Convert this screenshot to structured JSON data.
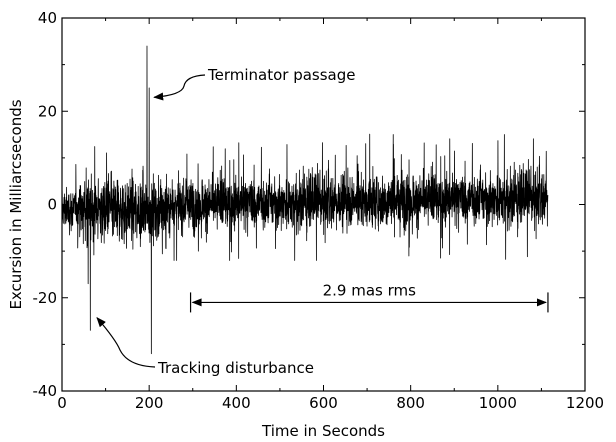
{
  "chart_data": {
    "type": "line",
    "title": "",
    "xlabel": "Time in Seconds",
    "ylabel": "Excursion in Milliarcseconds",
    "xlim": [
      0,
      1200
    ],
    "ylim": [
      -40,
      40
    ],
    "x_ticks": [
      0,
      200,
      400,
      600,
      800,
      1000,
      1200
    ],
    "y_ticks": [
      -40,
      -20,
      0,
      20,
      40
    ],
    "x_tick_labels": [
      "0",
      "200",
      "400",
      "600",
      "800",
      "1000",
      "1200"
    ],
    "y_tick_labels": [
      "-40",
      "-20",
      "0",
      "20",
      "40"
    ],
    "grid": false,
    "legend": "none",
    "line_color": "#000000",
    "series": [
      {
        "x_range": [
          0,
          1115
        ],
        "description_points": [
          {
            "x": 0,
            "y": 1
          },
          {
            "x": 60,
            "y": -17
          },
          {
            "x": 65,
            "y": -27
          },
          {
            "x": 195,
            "y": 34
          },
          {
            "x": 200,
            "y": 25
          },
          {
            "x": 205,
            "y": -32
          },
          {
            "x": 760,
            "y": 15
          },
          {
            "x": 1015,
            "y": 15
          },
          {
            "x": 1115,
            "y": 2
          }
        ],
        "envelope_early": [
          -7,
          7
        ],
        "envelope_late": [
          -6,
          8
        ]
      }
    ],
    "annotations": [
      {
        "text": "Terminator passage",
        "target": {
          "x": 200,
          "y": 23
        }
      },
      {
        "text": "Tracking disturbance",
        "target": {
          "x": 62,
          "y": -23
        }
      },
      {
        "text": "2.9 mas rms",
        "range": {
          "x_start": 295,
          "x_end": 1115,
          "y": -21
        }
      }
    ]
  }
}
